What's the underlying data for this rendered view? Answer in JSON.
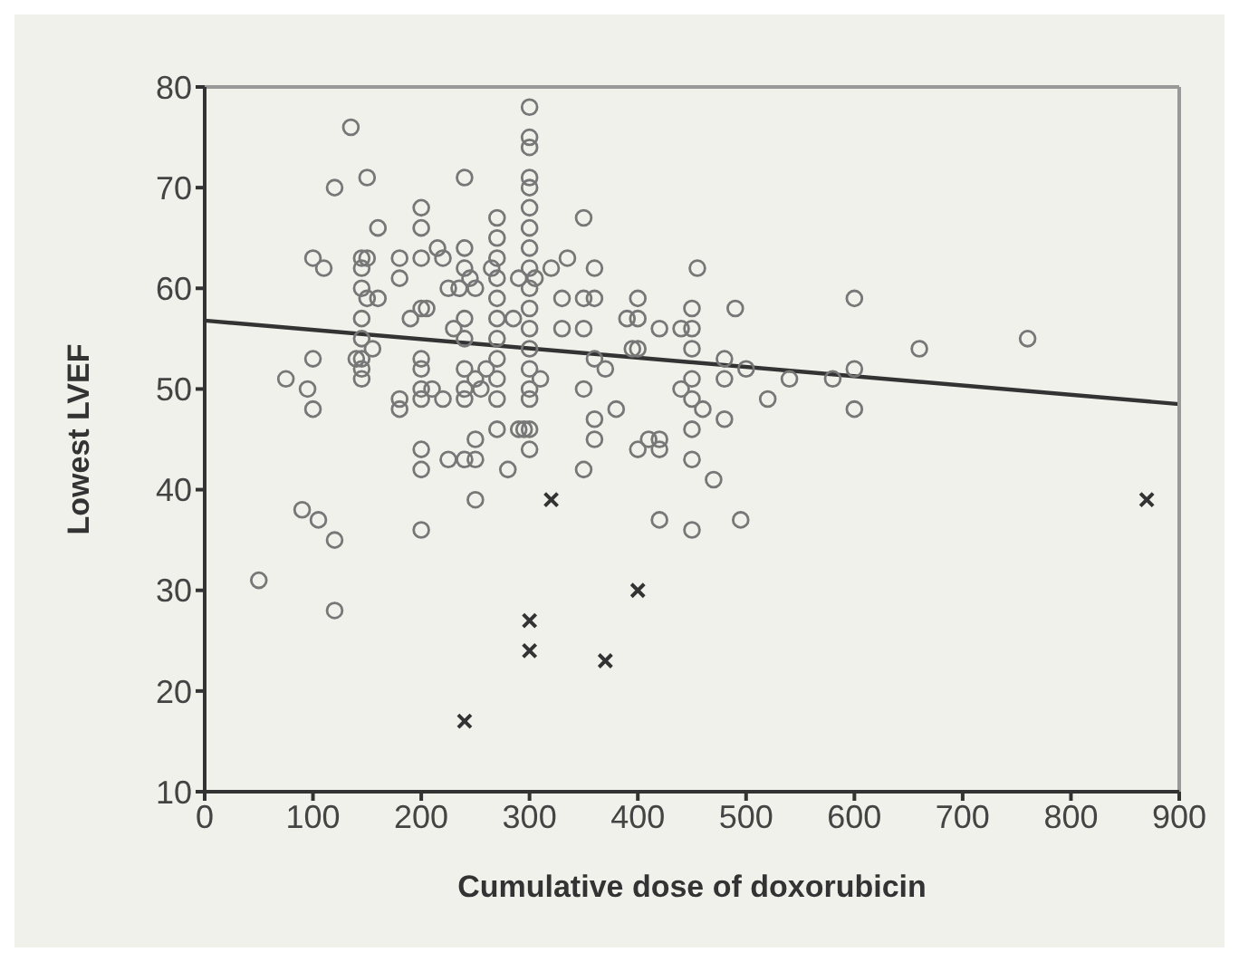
{
  "chart_data": {
    "type": "scatter",
    "xlabel": "Cumulative dose of doxorubicin",
    "ylabel": "Lowest LVEF",
    "xlim": [
      0,
      900
    ],
    "ylim": [
      10,
      80
    ],
    "xticks": [
      0,
      100,
      200,
      300,
      400,
      500,
      600,
      700,
      800,
      900
    ],
    "yticks": [
      10,
      20,
      30,
      40,
      50,
      60,
      70,
      80
    ],
    "grid": false,
    "legend": false,
    "series": [
      {
        "marker": "circle",
        "color": "#777777",
        "x": [
          50,
          75,
          90,
          95,
          100,
          100,
          100,
          105,
          110,
          120,
          120,
          120,
          135,
          140,
          145,
          145,
          145,
          145,
          145,
          145,
          145,
          145,
          150,
          150,
          150,
          155,
          160,
          160,
          180,
          180,
          180,
          180,
          190,
          200,
          200,
          200,
          200,
          200,
          200,
          200,
          200,
          200,
          200,
          200,
          205,
          210,
          215,
          220,
          220,
          225,
          225,
          230,
          235,
          240,
          240,
          240,
          240,
          240,
          240,
          240,
          240,
          240,
          245,
          250,
          250,
          250,
          250,
          250,
          255,
          260,
          265,
          270,
          270,
          270,
          270,
          270,
          270,
          270,
          270,
          270,
          270,
          270,
          280,
          285,
          290,
          290,
          295,
          300,
          300,
          300,
          300,
          300,
          300,
          300,
          300,
          300,
          300,
          300,
          300,
          300,
          300,
          300,
          300,
          300,
          300,
          305,
          310,
          320,
          330,
          330,
          335,
          350,
          350,
          350,
          350,
          350,
          360,
          360,
          360,
          360,
          360,
          370,
          380,
          390,
          395,
          400,
          400,
          400,
          400,
          410,
          420,
          420,
          420,
          420,
          440,
          440,
          450,
          450,
          450,
          450,
          450,
          450,
          450,
          450,
          455,
          460,
          470,
          480,
          480,
          480,
          490,
          495,
          500,
          520,
          540,
          580,
          600,
          600,
          600,
          660,
          760
        ],
        "values": [
          31,
          51,
          38,
          50,
          48,
          53,
          63,
          37,
          62,
          35,
          28,
          70,
          76,
          53,
          63,
          62,
          60,
          57,
          55,
          53,
          52,
          51,
          71,
          63,
          59,
          54,
          66,
          59,
          63,
          61,
          49,
          48,
          57,
          68,
          66,
          63,
          58,
          53,
          52,
          50,
          49,
          44,
          42,
          36,
          58,
          50,
          64,
          63,
          49,
          60,
          43,
          56,
          60,
          71,
          64,
          62,
          57,
          55,
          52,
          50,
          49,
          43,
          61,
          60,
          51,
          45,
          43,
          39,
          50,
          52,
          62,
          67,
          65,
          63,
          61,
          59,
          57,
          55,
          53,
          51,
          49,
          46,
          42,
          57,
          61,
          46,
          46,
          78,
          75,
          74,
          71,
          70,
          68,
          66,
          64,
          62,
          60,
          58,
          56,
          54,
          52,
          50,
          49,
          46,
          44,
          61,
          51,
          62,
          59,
          56,
          63,
          67,
          59,
          56,
          50,
          42,
          62,
          59,
          53,
          47,
          45,
          52,
          48,
          57,
          54,
          59,
          57,
          54,
          44,
          45,
          56,
          45,
          44,
          37,
          56,
          50,
          58,
          56,
          54,
          51,
          49,
          46,
          43,
          36,
          62,
          48,
          41,
          53,
          51,
          47,
          58,
          37,
          52,
          49,
          51,
          51,
          59,
          52,
          48,
          54,
          55
        ]
      },
      {
        "marker": "cross",
        "color": "#333333",
        "x": [
          240,
          300,
          300,
          320,
          370,
          400,
          870
        ],
        "values": [
          17,
          27,
          24,
          39,
          23,
          30,
          39
        ]
      },
      {
        "type": "line",
        "marker": "none",
        "color": "#333333",
        "x": [
          0,
          900
        ],
        "values": [
          56.8,
          48.5
        ]
      }
    ]
  }
}
